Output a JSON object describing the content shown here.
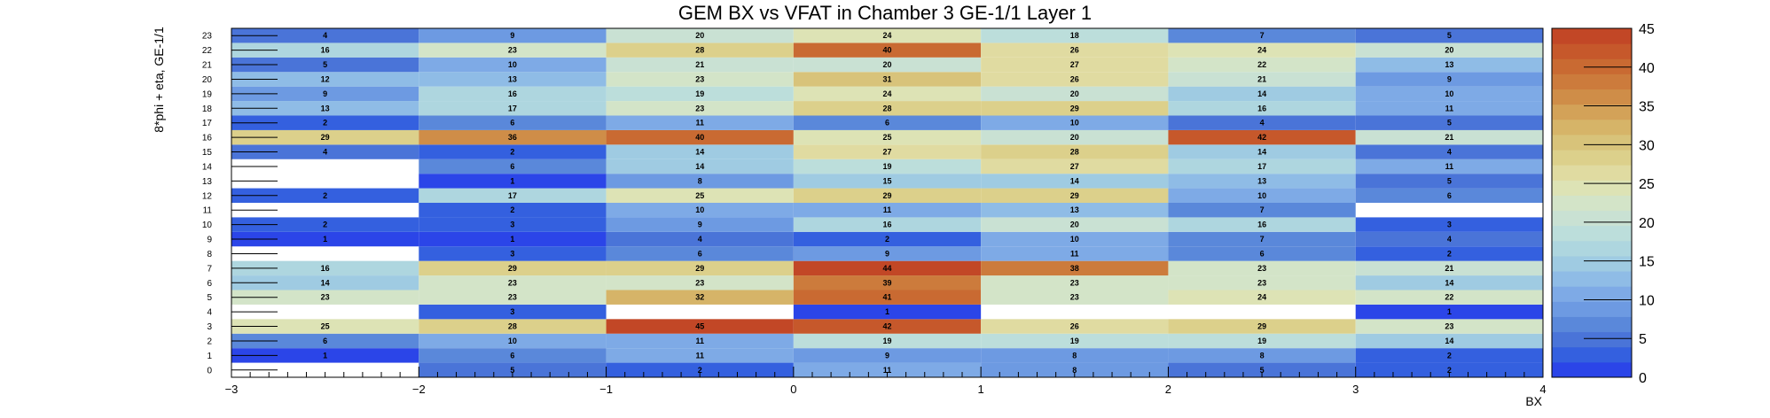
{
  "chart_data": {
    "type": "heatmap",
    "title": "GEM BX vs VFAT in Chamber 3 GE-1/1 Layer 1",
    "xlabel": "BX",
    "ylabel": "8*phi + eta, GE-1/1",
    "xlim": [
      -3,
      4
    ],
    "ylim": [
      0,
      24
    ],
    "zlim": [
      0,
      45
    ],
    "x_ticks": [
      "−3",
      "−2",
      "−1",
      "0",
      "1",
      "2",
      "3",
      "4"
    ],
    "y_ticks": [
      "0",
      "1",
      "2",
      "3",
      "4",
      "5",
      "6",
      "7",
      "8",
      "9",
      "10",
      "11",
      "12",
      "13",
      "14",
      "15",
      "16",
      "17",
      "18",
      "19",
      "20",
      "21",
      "22",
      "23"
    ],
    "z_ticks": [
      "0",
      "5",
      "10",
      "15",
      "20",
      "25",
      "30",
      "35",
      "40",
      "45"
    ],
    "x_bins": [
      -3,
      -2,
      -1,
      0,
      1,
      2,
      3
    ],
    "y_bins": [
      0,
      1,
      2,
      3,
      4,
      5,
      6,
      7,
      8,
      9,
      10,
      11,
      12,
      13,
      14,
      15,
      16,
      17,
      18,
      19,
      20,
      21,
      22,
      23
    ],
    "values": [
      [
        null,
        5,
        2,
        11,
        8,
        5,
        2
      ],
      [
        1,
        6,
        11,
        9,
        8,
        8,
        2
      ],
      [
        6,
        10,
        11,
        19,
        19,
        19,
        14
      ],
      [
        25,
        28,
        45,
        42,
        26,
        29,
        23
      ],
      [
        null,
        3,
        null,
        1,
        null,
        null,
        1
      ],
      [
        23,
        23,
        32,
        41,
        23,
        24,
        22
      ],
      [
        14,
        23,
        23,
        39,
        23,
        23,
        14
      ],
      [
        16,
        29,
        29,
        44,
        38,
        23,
        21
      ],
      [
        null,
        3,
        6,
        9,
        11,
        6,
        2
      ],
      [
        1,
        1,
        4,
        2,
        10,
        7,
        4
      ],
      [
        2,
        3,
        9,
        16,
        20,
        16,
        3
      ],
      [
        null,
        2,
        10,
        11,
        13,
        7,
        null
      ],
      [
        2,
        17,
        25,
        29,
        29,
        10,
        6
      ],
      [
        null,
        1,
        8,
        15,
        14,
        13,
        5
      ],
      [
        null,
        6,
        14,
        19,
        27,
        17,
        11
      ],
      [
        4,
        2,
        14,
        27,
        28,
        14,
        4
      ],
      [
        29,
        36,
        40,
        25,
        20,
        42,
        21
      ],
      [
        2,
        6,
        11,
        6,
        10,
        4,
        5
      ],
      [
        13,
        17,
        23,
        28,
        29,
        16,
        11
      ],
      [
        9,
        16,
        19,
        24,
        20,
        14,
        10
      ],
      [
        12,
        13,
        23,
        31,
        26,
        21,
        9
      ],
      [
        5,
        10,
        21,
        20,
        27,
        22,
        13
      ],
      [
        16,
        23,
        28,
        40,
        26,
        24,
        20
      ],
      [
        4,
        9,
        20,
        24,
        18,
        7,
        5
      ]
    ],
    "palette": [
      "#2b45e8",
      "#3460df",
      "#4a74d8",
      "#5a88da",
      "#6d9ae2",
      "#7eaae6",
      "#8fbce6",
      "#9fcbe2",
      "#aed6df",
      "#bcdedb",
      "#c9e1d3",
      "#d3e4c8",
      "#dde3b5",
      "#e0dba1",
      "#dcd08b",
      "#d8c37a",
      "#d6b468",
      "#d3a258",
      "#cf8d48",
      "#cc7b3c",
      "#c96a32",
      "#c6582b",
      "#c24726"
    ]
  }
}
